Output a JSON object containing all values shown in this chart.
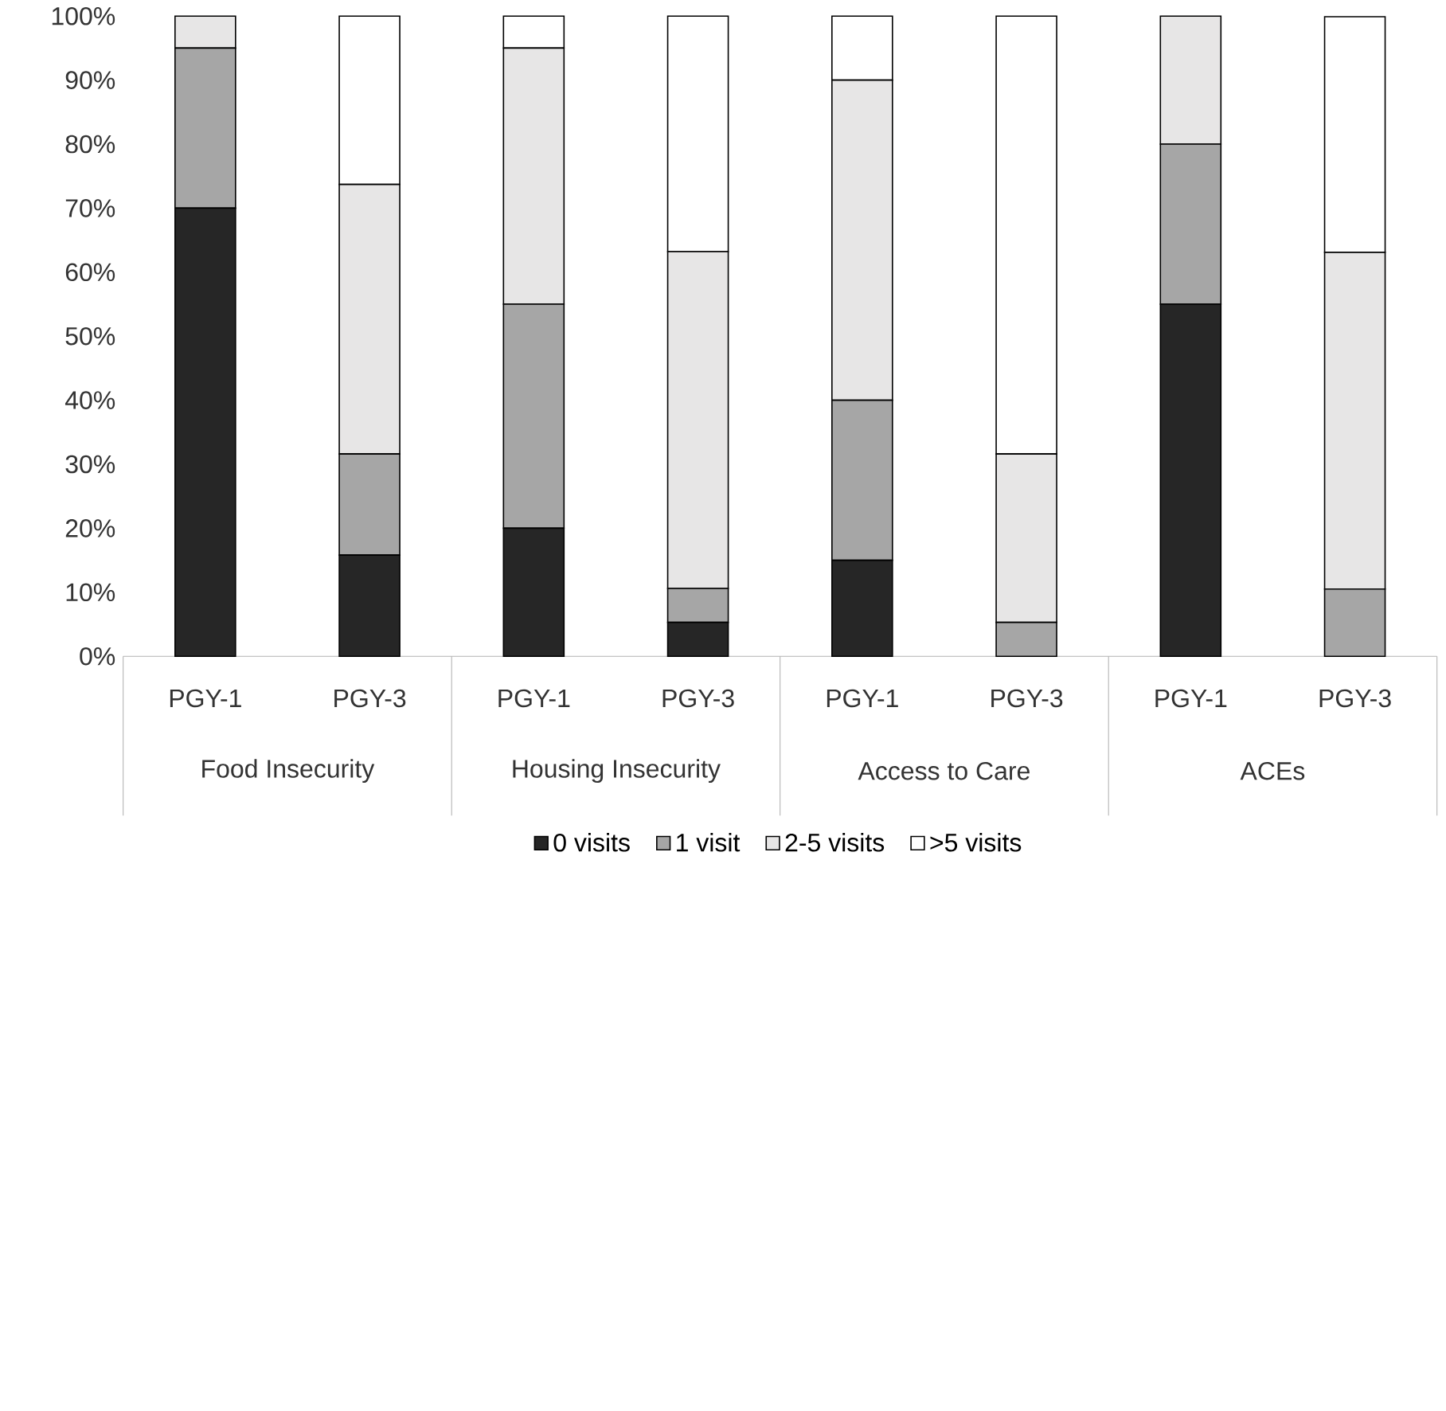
{
  "chart_data": {
    "type": "bar",
    "stacked": true,
    "categories": [
      "PGY-1",
      "PGY-3",
      "PGY-1",
      "PGY-3",
      "PGY-1",
      "PGY-3",
      "PGY-1",
      "PGY-3"
    ],
    "annotations": [
      "Food Insecurity",
      "Housing Insecurity",
      "Access to Care",
      "ACEs"
    ],
    "series": [
      {
        "name": "0 visits",
        "color": "#262626",
        "values": [
          70,
          15.8,
          20,
          5.3,
          15,
          0,
          55,
          0
        ]
      },
      {
        "name": "1 visit",
        "color": "#a6a6a6",
        "values": [
          25,
          15.8,
          35,
          5.3,
          25,
          5.3,
          25,
          10.5
        ]
      },
      {
        "name": "2-5 visits",
        "color": "#e7e6e6",
        "values": [
          5,
          42.1,
          40,
          52.6,
          50,
          26.3,
          20,
          52.6
        ]
      },
      {
        "name": ">5 visits",
        "color": "#ffffff",
        "values": [
          0,
          26.3,
          5,
          36.8,
          10,
          68.4,
          0,
          36.8
        ]
      }
    ],
    "ylim": [
      0,
      100
    ],
    "yticks": [
      {
        "value": 0,
        "label": "0%"
      },
      {
        "value": 10,
        "label": "10%"
      },
      {
        "value": 20,
        "label": "20%"
      },
      {
        "value": 30,
        "label": "30%"
      },
      {
        "value": 40,
        "label": "40%"
      },
      {
        "value": 50,
        "label": "50%"
      },
      {
        "value": 60,
        "label": "60%"
      },
      {
        "value": 70,
        "label": "70%"
      },
      {
        "value": 80,
        "label": "80%"
      },
      {
        "value": 90,
        "label": "90%"
      },
      {
        "value": 100,
        "label": "100%"
      }
    ],
    "legend": "bottom"
  }
}
